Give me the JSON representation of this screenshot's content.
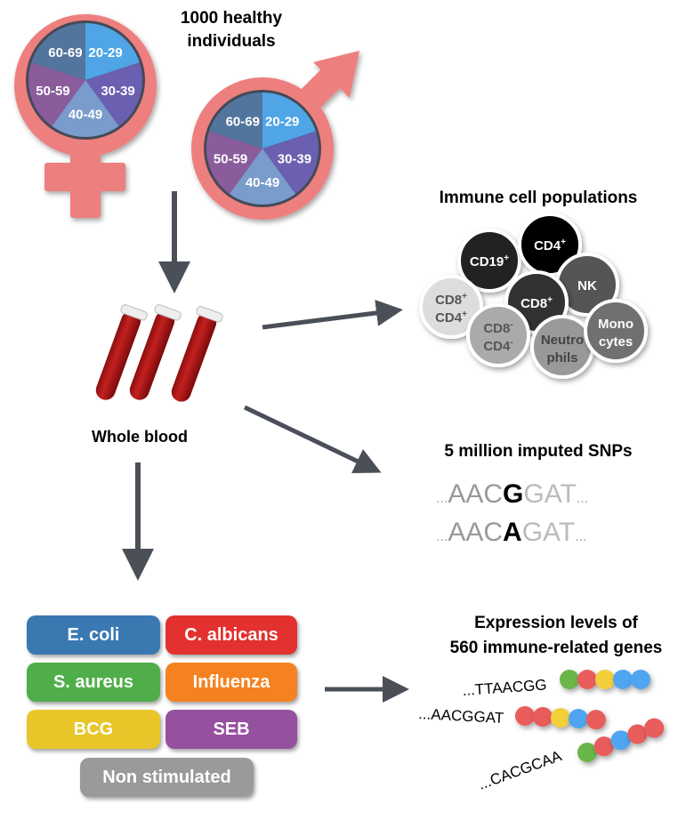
{
  "cohort": {
    "title_line1": "1000 healthy",
    "title_line2": "individuals",
    "age_groups": [
      "20-29",
      "30-39",
      "40-49",
      "50-59",
      "60-69"
    ],
    "age_colors": [
      "#4fa5e5",
      "#6a5fb0",
      "#7a9ccc",
      "#8a5c9c",
      "#52759e"
    ],
    "symbol_color": "#ee7f7f"
  },
  "sample": {
    "label": "Whole blood"
  },
  "immune": {
    "title": "Immune cell populations",
    "cells": [
      {
        "l1": "CD19",
        "sup1": "+",
        "l2": "",
        "sup2": "",
        "fill": "#222222",
        "text": "#ffffff"
      },
      {
        "l1": "CD4",
        "sup1": "+",
        "l2": "",
        "sup2": "",
        "fill": "#000000",
        "text": "#ffffff"
      },
      {
        "l1": "NK",
        "sup1": "",
        "l2": "",
        "sup2": "",
        "fill": "#555555",
        "text": "#ffffff"
      },
      {
        "l1": "CD8",
        "sup1": "+",
        "l2": "",
        "sup2": "",
        "fill": "#333333",
        "text": "#ffffff"
      },
      {
        "l1": "CD8",
        "sup1": "+",
        "l2": "CD4",
        "sup2": "+",
        "fill": "#dddddd",
        "text": "#555555"
      },
      {
        "l1": "CD8",
        "sup1": "-",
        "l2": "CD4",
        "sup2": "-",
        "fill": "#aaaaaa",
        "text": "#555555"
      },
      {
        "l1": "Neutro",
        "sup1": "",
        "l2": "phils",
        "sup2": "",
        "fill": "#999999",
        "text": "#444444"
      },
      {
        "l1": "Mono",
        "sup1": "",
        "l2": "cytes",
        "sup2": "",
        "fill": "#6f6f6f",
        "text": "#ffffff"
      }
    ]
  },
  "snps": {
    "title": "5 million imputed SNPs",
    "rows": [
      {
        "pre": "AAC",
        "alt": "G",
        "post": "GAT"
      },
      {
        "pre": "AAC",
        "alt": "A",
        "post": "GAT"
      }
    ],
    "dots": "..."
  },
  "stimuli": {
    "items": [
      {
        "label": "E. coli",
        "color": "#3a78b2"
      },
      {
        "label": "C. albicans",
        "color": "#e2312f"
      },
      {
        "label": "S. aureus",
        "color": "#4fae4a"
      },
      {
        "label": "Influenza",
        "color": "#f58220"
      },
      {
        "label": "BCG",
        "color": "#e8c62a"
      },
      {
        "label": "SEB",
        "color": "#9650a0"
      },
      {
        "label": "Non stimulated",
        "color": "#9a9a9a"
      }
    ]
  },
  "expression": {
    "title_line1": "Expression levels of",
    "title_line2": "560 immune-related genes",
    "rows": [
      {
        "seq": "...TTAACGG",
        "beads": [
          "#6ab64a",
          "#e85c5c",
          "#f2cf3a",
          "#4fa5f0",
          "#4fa5f0"
        ]
      },
      {
        "seq": "...AACGGAT",
        "beads": [
          "#e85c5c",
          "#e85c5c",
          "#f2cf3a",
          "#4fa5f0",
          "#e85c5c"
        ]
      },
      {
        "seq": "...CACGCAA",
        "beads": [
          "#6ab64a",
          "#e85c5c",
          "#4fa5f0",
          "#e85c5c",
          "#e85c5c"
        ]
      }
    ]
  }
}
